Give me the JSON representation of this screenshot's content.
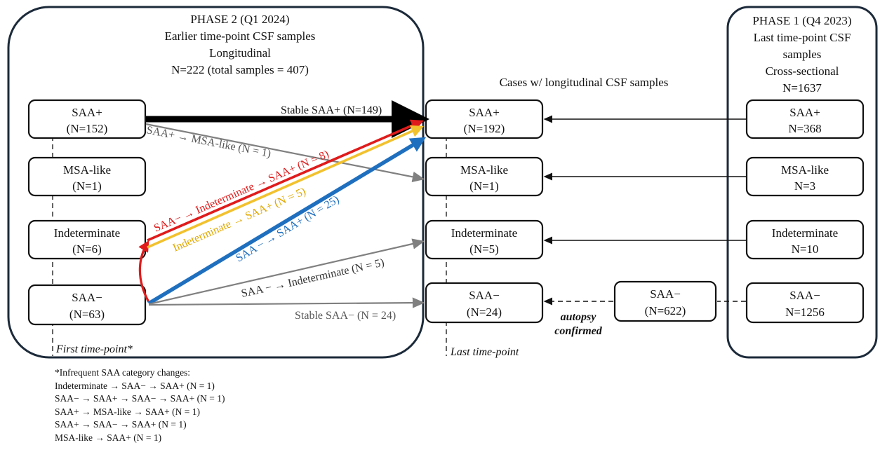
{
  "phase2": {
    "title": "PHASE 2 (Q1 2024)",
    "line2": "Earlier time-point CSF samples",
    "line3": "Longitudinal",
    "line4": "N=222 (total samples = 407)",
    "nodes": [
      {
        "label": "SAA+",
        "n": "(N=152)"
      },
      {
        "label": "MSA-like",
        "n": "(N=1)"
      },
      {
        "label": "Indeterminate",
        "n": "(N=6)"
      },
      {
        "label": "SAA−",
        "n": "(N=63)"
      }
    ],
    "first_timepoint": "First time-point*"
  },
  "middle": {
    "header": "Cases w/ longitudinal CSF samples",
    "nodes": [
      {
        "label": "SAA+",
        "n": "(N=192)"
      },
      {
        "label": "MSA-like",
        "n": "(N=1)"
      },
      {
        "label": "Indeterminate",
        "n": "(N=5)"
      },
      {
        "label": "SAA−",
        "n": "(N=24)"
      }
    ],
    "last_timepoint": "Last time-point"
  },
  "phase1": {
    "title": "PHASE 1 (Q4 2023)",
    "line2": "Last time-point CSF",
    "line3": "samples",
    "line4": "Cross-sectional",
    "line5": "N=1637",
    "nodes": [
      {
        "label": "SAA+",
        "n": "N=368"
      },
      {
        "label": "MSA-like",
        "n": "N=3"
      },
      {
        "label": "Indeterminate",
        "n": "N=10"
      },
      {
        "label": "SAA−",
        "n": "N=1256"
      }
    ]
  },
  "autopsy": {
    "label": "SAA−",
    "n": "(N=622)",
    "note_line1": "autopsy",
    "note_line2": "confirmed"
  },
  "transitions": {
    "stable_pos": "Stable SAA+ (N=149)",
    "pos_to_msa": "SAA+ → MSA-like (N = 1)",
    "neg_ind_pos": "SAA− → Indeterminate → SAA+ (N = 8)",
    "ind_to_pos": "Indeterminate → SAA+ (N = 5)",
    "neg_to_pos": "SAA − → SAA+ (N = 25)",
    "neg_to_ind": "SAA − → Indeterminate (N = 5)",
    "stable_neg": "Stable SAA− (N = 24)"
  },
  "footnote": {
    "title": "*Infrequent SAA category changes:",
    "lines": [
      "Indeterminate → SAA− → SAA+ (N = 1)",
      "SAA− → SAA+ → SAA− → SAA+ (N = 1)",
      "SAA+ → MSA-like → SAA+ (N = 1)",
      "SAA+ → SAA− → SAA+ (N = 1)",
      "MSA-like → SAA+ (N = 1)"
    ]
  },
  "colors": {
    "stable_pos": "#000000",
    "gray": "#808080",
    "red": "#e01b1b",
    "yellow": "#f2c12e",
    "blue": "#1f6fbf",
    "phase_border": "#1c2a3a"
  }
}
